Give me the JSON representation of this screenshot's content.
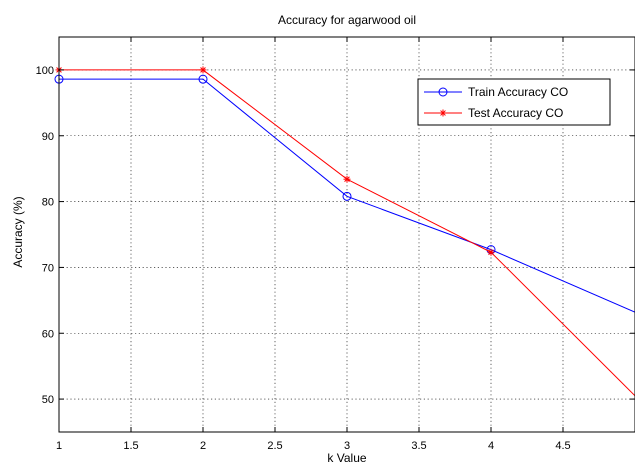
{
  "chart_data": {
    "type": "line",
    "title": "Accuracy for agarwood oil",
    "xlabel": "k Value",
    "ylabel": "Accuracy (%)",
    "xlim": [
      1,
      5
    ],
    "ylim": [
      45,
      105
    ],
    "x_ticks": [
      "1",
      "1.5",
      "2",
      "2.5",
      "3",
      "3.5",
      "4",
      "4.5"
    ],
    "y_ticks": [
      "50",
      "60",
      "70",
      "80",
      "90",
      "100"
    ],
    "grid": true,
    "legend_position": "top-right",
    "series": [
      {
        "name": "Train Accuracy CO",
        "color": "#0000ff",
        "marker": "circle",
        "x": [
          1,
          2,
          3,
          4,
          5
        ],
        "y": [
          98.6,
          98.6,
          80.8,
          72.7,
          63.2
        ]
      },
      {
        "name": "Test Accuracy CO",
        "color": "#ff0000",
        "marker": "star",
        "x": [
          1,
          2,
          3,
          4,
          5
        ],
        "y": [
          100,
          100,
          83.4,
          72.3,
          50.5
        ]
      }
    ]
  }
}
